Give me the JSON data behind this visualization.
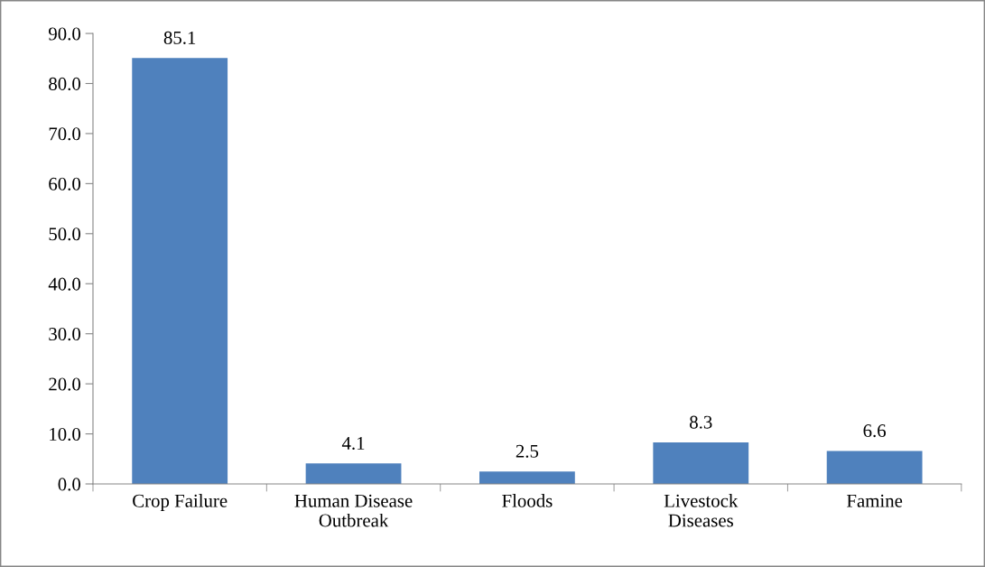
{
  "chart_data": {
    "type": "bar",
    "categories": [
      "Crop Failure",
      "Human Disease\nOutbreak",
      "Floods",
      "Livestock\nDiseases",
      "Famine"
    ],
    "values": [
      85.1,
      4.1,
      2.5,
      8.3,
      6.6
    ],
    "color": "#4f81bd",
    "ylim": [
      0,
      90
    ],
    "yticks": [
      {
        "value": 0,
        "label": "0.0"
      },
      {
        "value": 10,
        "label": "10.0"
      },
      {
        "value": 20,
        "label": "20.0"
      },
      {
        "value": 30,
        "label": "30.0"
      },
      {
        "value": 40,
        "label": "40.0"
      },
      {
        "value": 50,
        "label": "50.0"
      },
      {
        "value": 60,
        "label": "60.0"
      },
      {
        "value": 70,
        "label": "70.0"
      },
      {
        "value": 80,
        "label": "80.0"
      },
      {
        "value": 90,
        "label": "90.0"
      }
    ],
    "data_labels": true,
    "grid": false,
    "legend": false
  }
}
